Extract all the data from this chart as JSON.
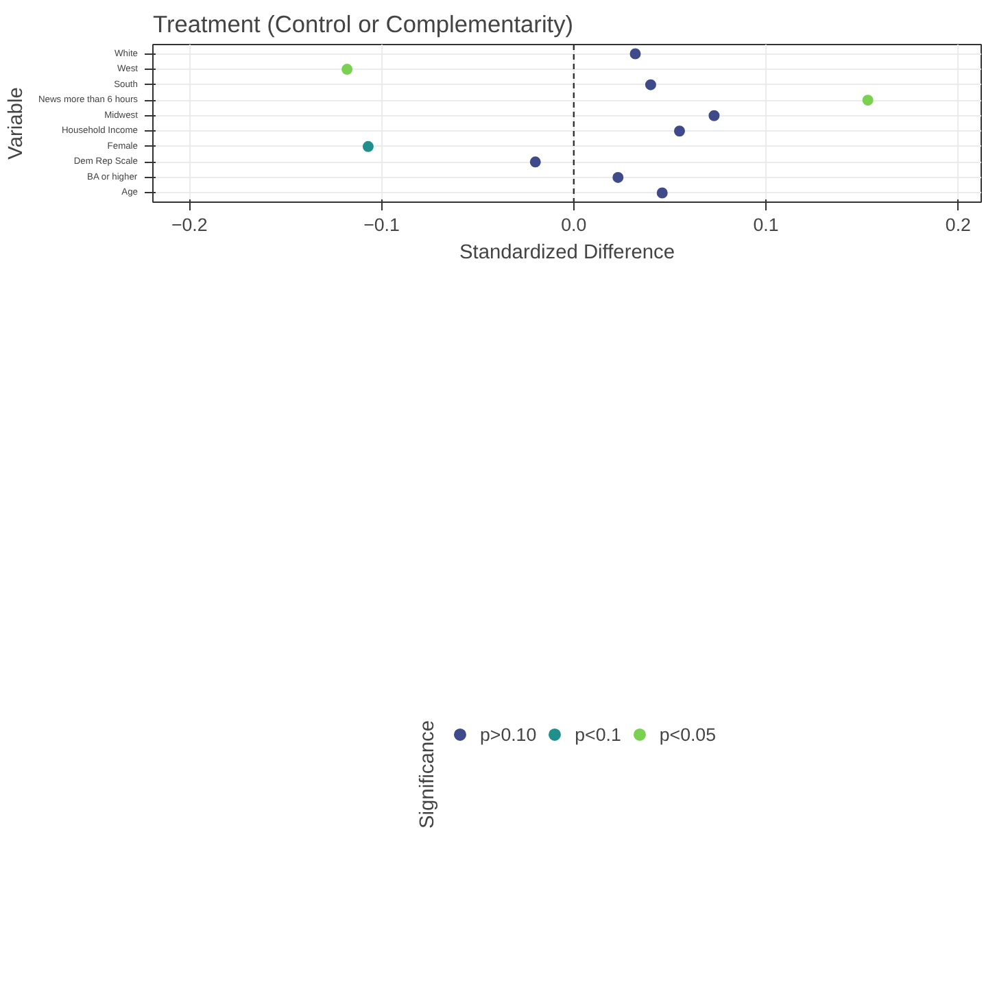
{
  "chart_data": {
    "type": "scatter",
    "orientation": "horizontal",
    "title": "Treatment (Control or Complementarity)",
    "xlabel": "Standardized Difference",
    "ylabel": "Variable",
    "legend_title": "Significance",
    "categories": [
      "White",
      "West",
      "South",
      "News more than 6 hours",
      "Midwest",
      "Household Income",
      "Female",
      "Dem Rep Scale",
      "BA or higher",
      "Age"
    ],
    "series": [
      {
        "name": "p>0.10",
        "color": "#3e4a89",
        "values": [
          0.032,
          null,
          0.04,
          null,
          0.073,
          0.055,
          null,
          -0.02,
          0.023,
          0.046
        ]
      },
      {
        "name": "p<0.1",
        "color": "#21908c",
        "values": [
          null,
          null,
          null,
          null,
          null,
          null,
          -0.107,
          null,
          null,
          null
        ]
      },
      {
        "name": "p<0.05",
        "color": "#7ad151",
        "values": [
          null,
          -0.118,
          null,
          0.153,
          null,
          null,
          null,
          null,
          null,
          null
        ]
      }
    ],
    "xlim": [
      -0.219,
      0.212
    ],
    "xticks": [
      {
        "value": -0.2,
        "label": "−0.2"
      },
      {
        "value": -0.1,
        "label": "−0.1"
      },
      {
        "value": 0,
        "label": "0.0"
      },
      {
        "value": 0.1,
        "label": "0.1"
      },
      {
        "value": 0.2,
        "label": "0.2"
      }
    ],
    "ref_lines": [
      {
        "axis": "x",
        "value": 0,
        "line_style": "dashed",
        "color": "#333333"
      }
    ],
    "grid": true,
    "legend": "bottom",
    "marker": "circle"
  }
}
